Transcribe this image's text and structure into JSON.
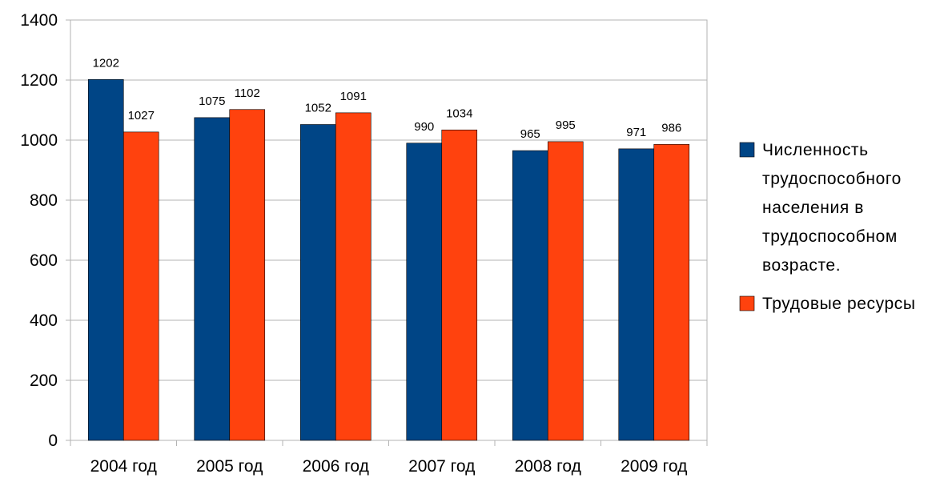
{
  "chart_data": {
    "type": "bar",
    "categories": [
      "2004 год",
      "2005 год",
      "2006 год",
      "2007 год",
      "2008 год",
      "2009 год"
    ],
    "series": [
      {
        "name": "Численность трудоспособного населения в трудоспособном возрасте.",
        "name_lines": [
          "Численность",
          "трудоспособного",
          "населения в",
          "трудоспособном",
          "возрасте."
        ],
        "values": [
          1202,
          1075,
          1052,
          990,
          965,
          971
        ],
        "color": "#004586"
      },
      {
        "name": "Трудовые ресурсы",
        "name_lines": [
          "Трудовые ресурсы"
        ],
        "values": [
          1027,
          1102,
          1091,
          1034,
          995,
          986
        ],
        "color": "#ff420e"
      }
    ],
    "y_ticks": [
      "0",
      "200",
      "400",
      "600",
      "800",
      "1000",
      "1200",
      "1400"
    ],
    "ylim": [
      0,
      1400
    ],
    "grid": true,
    "legend": "right",
    "title": "",
    "xlabel": "",
    "ylabel": ""
  }
}
